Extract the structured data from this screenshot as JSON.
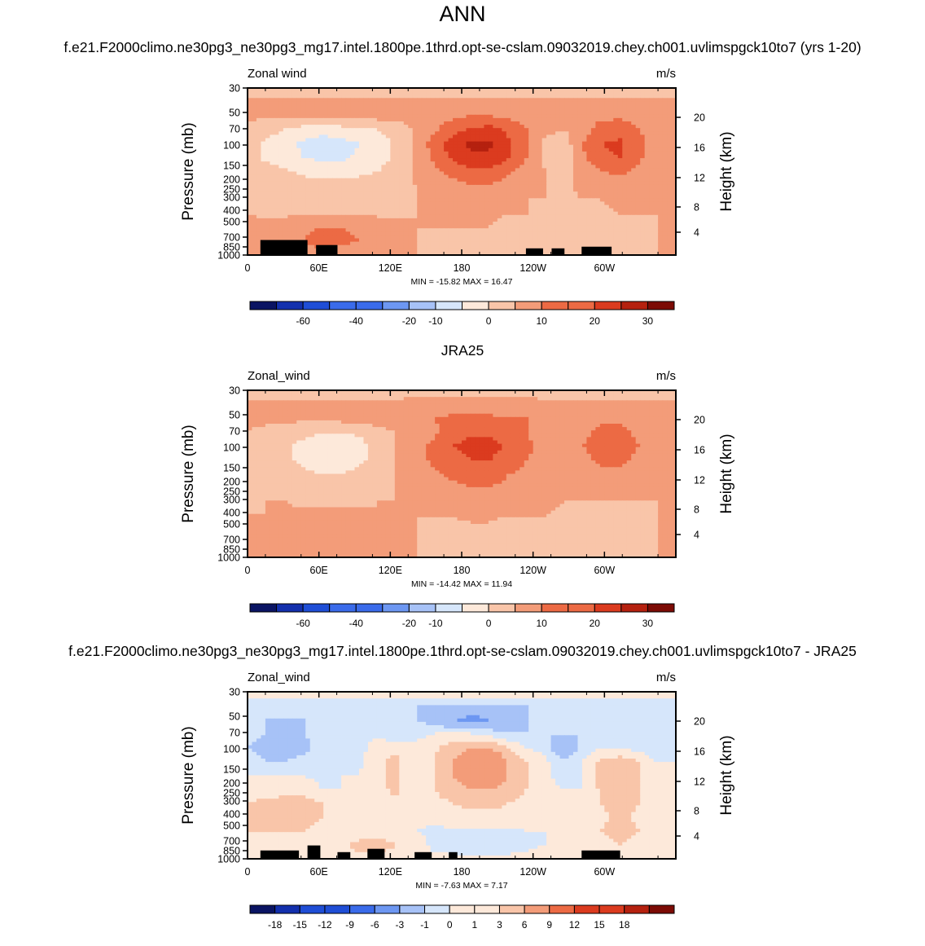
{
  "page": {
    "main_title": "ANN",
    "panel1_title": "f.e21.F2000climo.ne30pg3_ne30pg3_mg17.intel.1800pe.1thrd.opt-se-cslam.09032019.chey.ch001.uvlimspgck10to7 (yrs 1-20)",
    "panel2_title": "JRA25",
    "panel3_title": "f.e21.F2000climo.ne30pg3_ne30pg3_mg17.intel.1800pe.1thrd.opt-se-cslam.09032019.chey.ch001.uvlimspgck10to7 - JRA25"
  },
  "colors": {
    "scale": [
      "#0a1463",
      "#1330ad",
      "#1f4ed6",
      "#3a6bea",
      "#6d97f2",
      "#a7c2f7",
      "#d6e6fb",
      "#fde9da",
      "#f9c5a9",
      "#f39c79",
      "#ec6a44",
      "#db3b1f",
      "#b5210f",
      "#7c0b05"
    ],
    "topography": "#000000"
  },
  "chart_data": [
    {
      "type": "heatmap",
      "name": "model",
      "left_label": "Zonal wind",
      "units": "m/s",
      "ylabel": "Pressure (mb)",
      "ylabel_right": "Height (km)",
      "y_ticks": [
        "30",
        "50",
        "70",
        "100",
        "150",
        "200",
        "250",
        "300",
        "400",
        "500",
        "700",
        "850",
        "1000"
      ],
      "height_ticks": [
        "20",
        "16",
        "12",
        "8",
        "4"
      ],
      "x_ticks": [
        "0",
        "60E",
        "120E",
        "180",
        "120W",
        "60W"
      ],
      "min_max": "MIN = -15.82  MAX =  16.47",
      "colorbar_labels": [
        "-60",
        "-40",
        "-20",
        "-10",
        "0",
        "10",
        "20",
        "30"
      ],
      "contour_levels": [
        -70,
        -60,
        -50,
        -40,
        -30,
        -20,
        -10,
        -5,
        0,
        5,
        10,
        15,
        20,
        25,
        30
      ],
      "field": [
        [
          -3,
          -3,
          -3,
          -3,
          -3,
          -3,
          -3,
          -3,
          -3,
          -3,
          -3,
          -3,
          -3,
          -3,
          -3,
          -3,
          -3,
          -3,
          -3,
          -3,
          -3,
          -3,
          -3,
          -3
        ],
        [
          1,
          1,
          1,
          1,
          1,
          1,
          1,
          1,
          1,
          1,
          1,
          1,
          1,
          1,
          1,
          1,
          1,
          1,
          1,
          1,
          1,
          1,
          1,
          1
        ],
        [
          1,
          1,
          1,
          1,
          1,
          1,
          2,
          2,
          2,
          2,
          3,
          4,
          5,
          5,
          4,
          3,
          2,
          2,
          3,
          4,
          4,
          3,
          2,
          1
        ],
        [
          -2,
          -3,
          -5,
          -7,
          -8,
          -7,
          -6,
          -5,
          -3,
          1,
          4,
          8,
          11,
          12,
          9,
          5,
          1,
          0,
          3,
          7,
          8,
          5,
          2,
          1
        ],
        [
          -3,
          -6,
          -8,
          -11,
          -13,
          -12,
          -10,
          -8,
          -4,
          1,
          7,
          13,
          16,
          16,
          11,
          6,
          -1,
          -3,
          5,
          10,
          11,
          7,
          2,
          1
        ],
        [
          -3,
          -6,
          -8,
          -10,
          -11,
          -11,
          -9,
          -7,
          -4,
          1,
          6,
          11,
          14,
          14,
          10,
          5,
          -1,
          -4,
          4,
          9,
          10,
          6,
          2,
          1
        ],
        [
          -2,
          -3,
          -4,
          -6,
          -7,
          -7,
          -6,
          -5,
          -3,
          1,
          4,
          7,
          9,
          9,
          6,
          3,
          0,
          -2,
          2,
          5,
          6,
          4,
          1,
          0
        ],
        [
          -1,
          -2,
          -2,
          -3,
          -3,
          -3,
          -3,
          -2,
          -2,
          0,
          2,
          3,
          5,
          5,
          3,
          1,
          0,
          -1,
          1,
          2,
          3,
          2,
          0,
          0
        ],
        [
          -1,
          -1,
          -1,
          -2,
          -2,
          -2,
          -2,
          -2,
          -1,
          0,
          1,
          1,
          2,
          2,
          1,
          0,
          0,
          -1,
          0,
          0,
          1,
          1,
          0,
          0
        ],
        [
          0,
          -1,
          -1,
          -1,
          -1,
          -1,
          -1,
          -1,
          -1,
          0,
          0,
          0,
          1,
          1,
          0,
          0,
          -1,
          -1,
          -1,
          -1,
          0,
          0,
          0,
          0
        ],
        [
          1,
          2,
          3,
          4,
          5,
          5,
          4,
          3,
          2,
          0,
          0,
          0,
          0,
          0,
          -1,
          -2,
          -2,
          -2,
          -2,
          -2,
          -2,
          -1,
          0,
          1
        ],
        [
          1,
          2,
          4,
          5,
          7,
          6,
          5,
          3,
          2,
          0,
          -1,
          -1,
          -2,
          -2,
          -3,
          -3,
          -3,
          -3,
          -3,
          -4,
          -3,
          -2,
          0,
          1
        ],
        [
          0,
          1,
          2,
          3,
          3,
          3,
          2,
          1,
          0,
          0,
          -1,
          -2,
          -3,
          -4,
          -4,
          -3,
          -2,
          -2,
          -3,
          -3,
          -2,
          -1,
          0,
          0
        ]
      ],
      "topography": [
        [
          0.03,
          0.14,
          0.09
        ],
        [
          0.16,
          0.21,
          0.06
        ],
        [
          0.65,
          0.69,
          0.04
        ],
        [
          0.71,
          0.74,
          0.04
        ],
        [
          0.78,
          0.85,
          0.05
        ]
      ]
    },
    {
      "type": "heatmap",
      "name": "obs",
      "left_label": "Zonal_wind",
      "units": "m/s",
      "ylabel": "Pressure (mb)",
      "ylabel_right": "Height (km)",
      "y_ticks": [
        "30",
        "50",
        "70",
        "100",
        "150",
        "200",
        "250",
        "300",
        "400",
        "500",
        "700",
        "850",
        "1000"
      ],
      "height_ticks": [
        "20",
        "16",
        "12",
        "8",
        "4"
      ],
      "x_ticks": [
        "0",
        "60E",
        "120E",
        "180",
        "120W",
        "60W"
      ],
      "min_max": "MIN = -14.42  MAX =  11.94",
      "colorbar_labels": [
        "-60",
        "-40",
        "-20",
        "-10",
        "0",
        "10",
        "20",
        "30"
      ],
      "contour_levels": [
        -70,
        -60,
        -50,
        -40,
        -30,
        -20,
        -10,
        -5,
        0,
        5,
        10,
        15,
        20,
        25,
        30
      ],
      "field": [
        [
          -2,
          -2,
          -2,
          -2,
          -2,
          -2,
          -2,
          -2,
          -2,
          -2,
          -2,
          -2,
          -2,
          -2,
          -2,
          -2,
          -2,
          -2,
          -2,
          -2,
          -2,
          -2,
          -2,
          -2
        ],
        [
          1,
          1,
          1,
          1,
          1,
          1,
          1,
          1,
          1,
          2,
          2,
          2,
          2,
          2,
          2,
          2,
          1,
          1,
          1,
          1,
          1,
          1,
          1,
          1
        ],
        [
          1,
          1,
          1,
          1,
          1,
          2,
          2,
          3,
          4,
          5,
          5,
          6,
          6,
          6,
          5,
          5,
          5,
          4,
          4,
          4,
          4,
          3,
          2,
          1
        ],
        [
          0,
          -1,
          -2,
          -3,
          -5,
          -5,
          -4,
          -2,
          0,
          2,
          4,
          7,
          9,
          9,
          7,
          5,
          3,
          2,
          4,
          6,
          6,
          4,
          2,
          1
        ],
        [
          -1,
          -2,
          -4,
          -7,
          -9,
          -9,
          -7,
          -3,
          0,
          3,
          6,
          10,
          12,
          12,
          9,
          6,
          3,
          2,
          5,
          7,
          7,
          5,
          2,
          1
        ],
        [
          -1,
          -2,
          -4,
          -6,
          -8,
          -8,
          -6,
          -3,
          0,
          3,
          6,
          8,
          10,
          10,
          8,
          5,
          3,
          2,
          4,
          6,
          6,
          4,
          2,
          1
        ],
        [
          -1,
          -1,
          -2,
          -4,
          -5,
          -5,
          -4,
          -2,
          0,
          2,
          4,
          6,
          7,
          7,
          5,
          4,
          2,
          1,
          3,
          4,
          4,
          3,
          1,
          0
        ],
        [
          -1,
          -1,
          -1,
          -2,
          -3,
          -3,
          -2,
          -1,
          0,
          1,
          3,
          4,
          5,
          5,
          4,
          3,
          2,
          1,
          2,
          2,
          2,
          1,
          0,
          0
        ],
        [
          -1,
          0,
          0,
          -1,
          -1,
          -1,
          -1,
          0,
          0,
          1,
          1,
          2,
          3,
          3,
          2,
          2,
          1,
          0,
          0,
          0,
          0,
          0,
          0,
          0
        ],
        [
          0,
          0,
          1,
          1,
          1,
          1,
          1,
          0,
          0,
          0,
          0,
          0,
          1,
          1,
          0,
          0,
          0,
          -1,
          -1,
          -1,
          -1,
          -1,
          0,
          0
        ],
        [
          0,
          1,
          2,
          3,
          4,
          4,
          3,
          2,
          1,
          0,
          -1,
          -1,
          -1,
          -1,
          -2,
          -2,
          -2,
          -2,
          -2,
          -2,
          -2,
          -1,
          0,
          0
        ],
        [
          0,
          1,
          3,
          4,
          5,
          5,
          4,
          2,
          1,
          0,
          -1,
          -2,
          -2,
          -3,
          -3,
          -3,
          -3,
          -3,
          -3,
          -3,
          -2,
          -1,
          0,
          0
        ],
        [
          0,
          1,
          2,
          2,
          3,
          3,
          2,
          1,
          0,
          0,
          -1,
          -2,
          -2,
          -3,
          -3,
          -3,
          -2,
          -2,
          -2,
          -2,
          -1,
          -1,
          0,
          0
        ]
      ],
      "topography": []
    },
    {
      "type": "heatmap",
      "name": "difference",
      "left_label": "Zonal_wind",
      "units": "m/s",
      "ylabel": "Pressure (mb)",
      "ylabel_right": "Height (km)",
      "y_ticks": [
        "30",
        "50",
        "70",
        "100",
        "150",
        "200",
        "250",
        "300",
        "400",
        "500",
        "700",
        "850",
        "1000"
      ],
      "height_ticks": [
        "20",
        "16",
        "12",
        "8",
        "4"
      ],
      "x_ticks": [
        "0",
        "60E",
        "120E",
        "180",
        "120W",
        "60W"
      ],
      "min_max": "MIN =  -7.63  MAX =   7.17",
      "colorbar_labels": [
        "-18",
        "-15",
        "-12",
        "-9",
        "-6",
        "-3",
        "-1",
        "0",
        "1",
        "3",
        "6",
        "9",
        "12",
        "15",
        "18"
      ],
      "contour_levels": [
        -21,
        -18,
        -15,
        -12,
        -9,
        -6,
        -3,
        -1,
        0,
        1,
        3,
        6,
        9,
        12,
        15,
        18
      ],
      "field": [
        [
          0.5,
          0.5,
          0.5,
          0.5,
          0.5,
          0.5,
          0.5,
          0.5,
          0.5,
          0.5,
          0.5,
          0.5,
          0.5,
          0.5,
          0.5,
          0.5,
          0.5,
          0.5,
          0.5,
          0.5,
          0.5,
          0.5,
          0.5,
          0.5
        ],
        [
          -2,
          -3,
          -3,
          -3,
          -3,
          -3,
          -3,
          -3,
          -3,
          -3,
          -3,
          -3,
          -3.5,
          -3.5,
          -3,
          -3,
          -3,
          -3,
          -3,
          -3,
          -3,
          -3,
          -3,
          -2
        ],
        [
          -2,
          -3,
          -3,
          -3,
          -3,
          -3,
          -3,
          -3,
          -3,
          -3,
          -4,
          -6,
          -7,
          -6,
          -4,
          -3,
          -3,
          -3,
          -3,
          -3,
          -3,
          -3,
          -3,
          -2
        ],
        [
          -2,
          -3,
          -4,
          -3,
          -1.5,
          -1.5,
          -1.5,
          -2,
          -3,
          -2,
          -1,
          -1,
          -1,
          -2,
          -3,
          -3,
          -3,
          -3,
          -3,
          -3,
          -3,
          -3,
          -3,
          -2
        ],
        [
          -3,
          -4,
          -6,
          -4,
          -1.5,
          -1,
          -2,
          0.5,
          0.5,
          0,
          0.5,
          2,
          3,
          3,
          1,
          -1,
          -2,
          -6,
          -2,
          -1,
          -1,
          -2,
          -3,
          -2
        ],
        [
          -2,
          -3,
          -3,
          -2,
          -1.5,
          -1,
          -1.5,
          0.5,
          1.5,
          -1,
          1,
          3,
          5,
          6,
          3,
          1,
          -0.5,
          -3,
          -1,
          1.5,
          2,
          1,
          -1,
          -1
        ],
        [
          -1,
          -1,
          -1,
          -1,
          -1.5,
          -1,
          -1,
          0.5,
          1.5,
          -1,
          1,
          3,
          5,
          6,
          3,
          1,
          -0.5,
          -2,
          -1,
          1.5,
          2,
          1,
          -1,
          -1
        ],
        [
          0,
          0,
          0,
          0,
          -1,
          -1,
          -1,
          0.5,
          1.5,
          -1,
          1,
          2,
          3,
          3,
          2,
          1,
          -0.5,
          -1,
          -1,
          1.5,
          2,
          1,
          -1,
          0
        ],
        [
          1,
          1.5,
          2,
          2,
          1,
          0,
          0,
          0,
          0.5,
          0,
          0.5,
          1,
          1.5,
          1.5,
          1,
          0.5,
          0,
          -1,
          -1,
          1,
          2,
          1,
          0,
          0
        ],
        [
          1,
          1.5,
          2,
          1.5,
          1,
          0,
          0,
          0,
          0,
          -0.5,
          0,
          0.5,
          0.5,
          0.5,
          0.5,
          0,
          -0.5,
          -1,
          -1,
          0.5,
          1.5,
          0.5,
          0,
          0
        ],
        [
          1,
          1,
          1,
          1,
          0.5,
          0,
          0,
          0,
          0,
          -1,
          -1.5,
          -1.5,
          -1.5,
          -1.5,
          -1.5,
          -1,
          -1,
          -1,
          -1,
          1,
          2,
          1,
          0,
          0
        ],
        [
          0.5,
          0.5,
          0.5,
          0.5,
          0.5,
          0.5,
          1.5,
          2,
          1,
          0,
          -1.5,
          -2,
          -2,
          -2,
          -2,
          -1.5,
          -1,
          -1,
          -1,
          0,
          1,
          0,
          0,
          0
        ],
        [
          0.5,
          0.5,
          0.5,
          0.5,
          0.5,
          0.5,
          0.5,
          0.5,
          0,
          0,
          -0.5,
          -0.5,
          -0.5,
          -0.5,
          -0.5,
          -0.5,
          0,
          0,
          0,
          0,
          0,
          0,
          0,
          0
        ]
      ],
      "topography": [
        [
          0.03,
          0.12,
          0.05
        ],
        [
          0.14,
          0.17,
          0.08
        ],
        [
          0.21,
          0.24,
          0.04
        ],
        [
          0.28,
          0.32,
          0.06
        ],
        [
          0.39,
          0.43,
          0.04
        ],
        [
          0.47,
          0.49,
          0.04
        ],
        [
          0.78,
          0.87,
          0.05
        ]
      ]
    }
  ]
}
